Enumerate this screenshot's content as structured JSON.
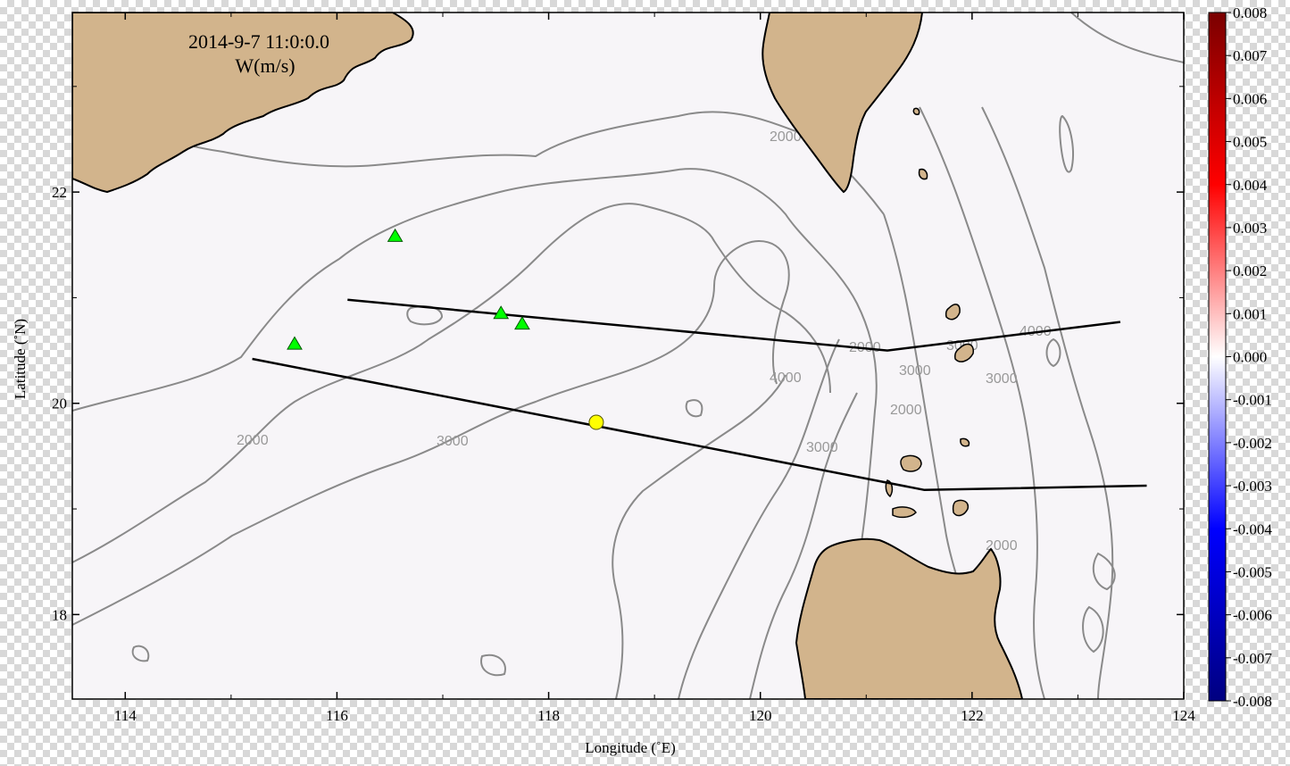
{
  "map": {
    "title_line1": "2014-9-7 11:0:0.0",
    "title_line2": "W(m/s)",
    "xlabel": "Longitude (˚E)",
    "ylabel": "Latitude (˚N)",
    "xlim": [
      113.5,
      124
    ],
    "ylim": [
      17.2,
      23.7
    ],
    "background_color": "#f7f5f8",
    "land_color": "#d2b48c",
    "x_ticks": [
      "114",
      "116",
      "118",
      "120",
      "122",
      "124"
    ],
    "y_ticks": [
      "18",
      "20",
      "22"
    ],
    "contour_labels": [
      "2000",
      "2000",
      "2000",
      "2000",
      "3000",
      "3000",
      "3000",
      "3000",
      "3000",
      "4000",
      "4000",
      "2000"
    ],
    "stations_triangle": [
      {
        "lon": 116.55,
        "lat": 21.58
      },
      {
        "lon": 117.55,
        "lat": 20.85
      },
      {
        "lon": 117.75,
        "lat": 20.75
      },
      {
        "lon": 115.6,
        "lat": 20.56
      }
    ],
    "station_circle": {
      "lon": 118.45,
      "lat": 19.82
    },
    "sections": [
      [
        [
          116.1,
          20.98
        ],
        [
          121.2,
          20.5
        ],
        [
          123.4,
          20.77
        ]
      ],
      [
        [
          115.2,
          20.42
        ],
        [
          121.55,
          19.18
        ],
        [
          123.65,
          19.22
        ]
      ]
    ]
  },
  "colorbar": {
    "colors": [
      "#7a0000",
      "#ff0000",
      "#ffffff",
      "#0000ff",
      "#000080"
    ],
    "labels": [
      "0.008",
      "0.007",
      "0.006",
      "0.005",
      "0.004",
      "0.003",
      "0.002",
      "0.001",
      "0.000",
      "-0.001",
      "-0.002",
      "-0.003",
      "-0.004",
      "-0.005",
      "-0.006",
      "-0.007",
      "-0.008"
    ]
  }
}
